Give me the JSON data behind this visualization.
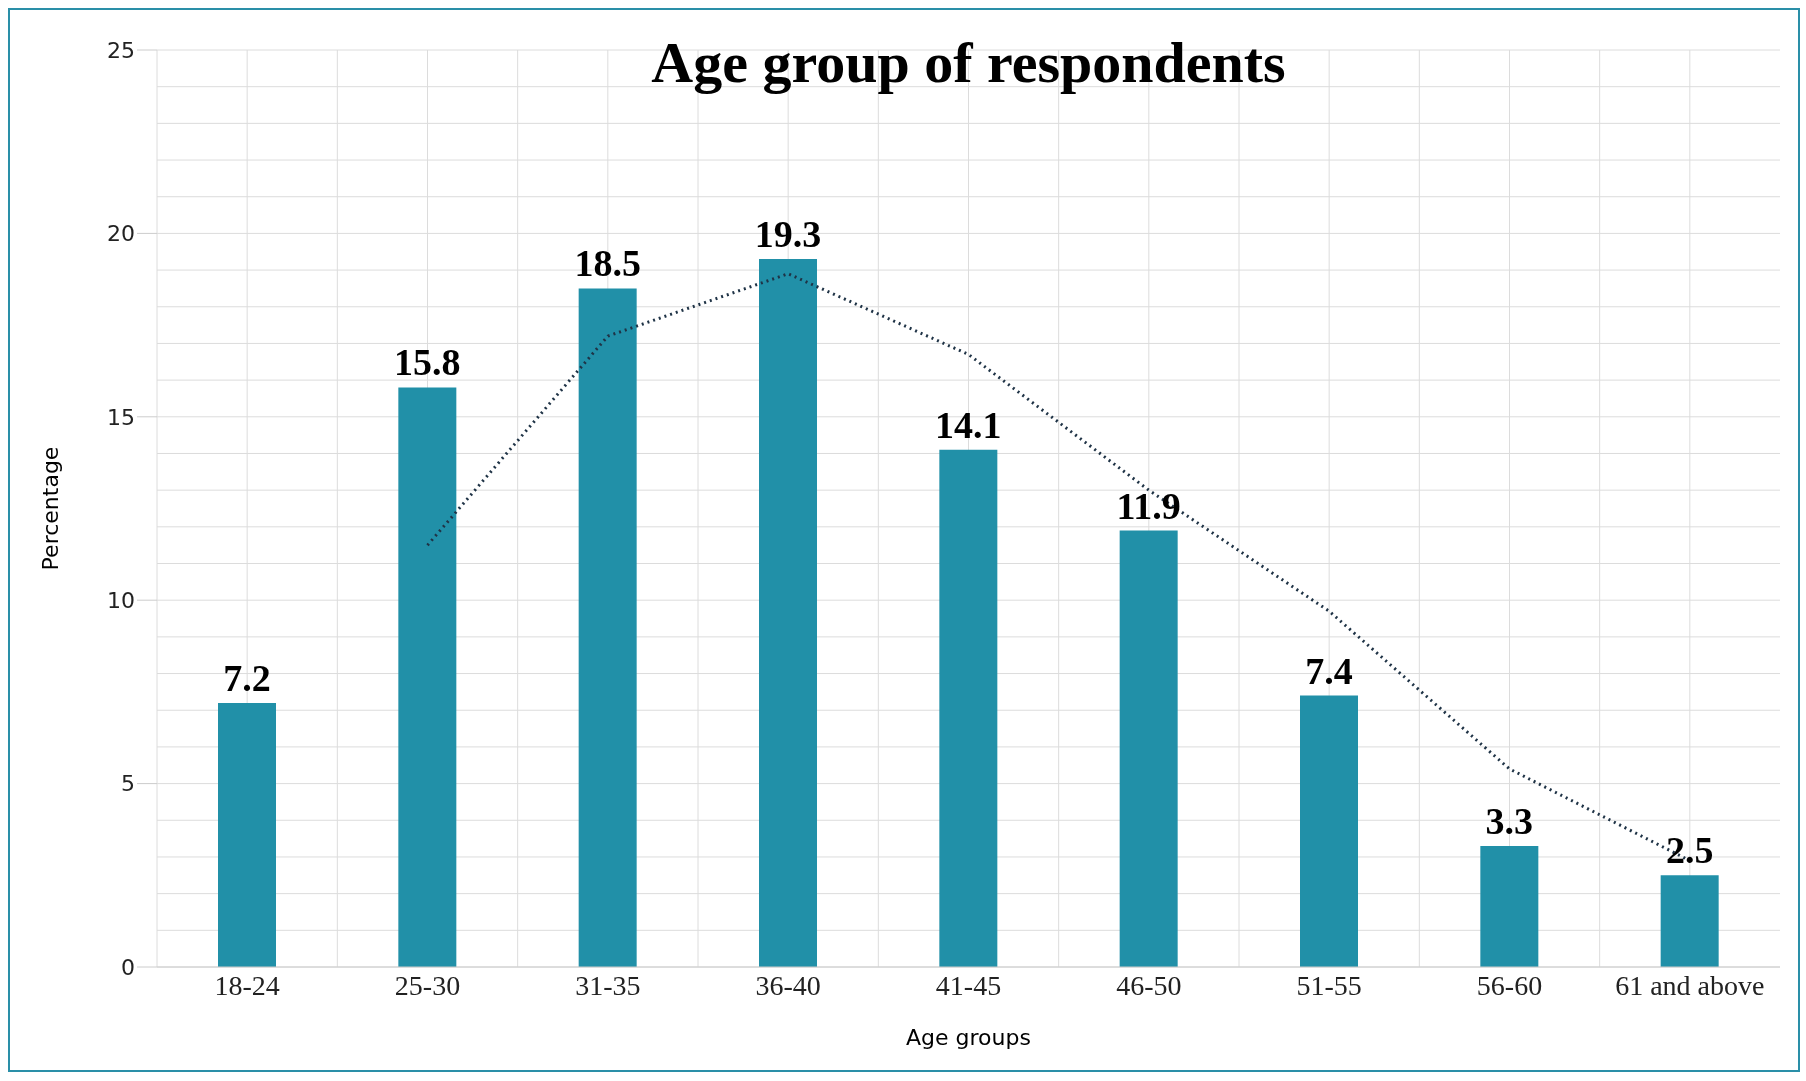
{
  "chart_data": {
    "type": "bar",
    "title": "Age group of  respondents",
    "xlabel": "Age groups",
    "ylabel": "Percentage",
    "categories": [
      "18-24",
      "25-30",
      "31-35",
      "36-40",
      "41-45",
      "46-50",
      "51-55",
      "56-60",
      "61 and above"
    ],
    "series": [
      {
        "color": "#2190a8",
        "values": [
          7.2,
          15.8,
          18.5,
          19.3,
          14.1,
          11.9,
          7.4,
          3.3,
          2.5
        ],
        "value_labels": [
          "7.2",
          "15.8",
          "18.5",
          "19.3",
          "14.1",
          "11.9",
          "7.4",
          "3.3",
          "2.5"
        ]
      },
      {
        "type": "line",
        "color": "#1f3346",
        "line_style": "dotted",
        "marker": "none",
        "x": [
          "25-30",
          "31-35",
          "36-40",
          "41-45",
          "46-50",
          "51-55",
          "56-60",
          "61 and above"
        ],
        "values": [
          11.5,
          17.2,
          18.9,
          16.7,
          13.0,
          9.7,
          5.4,
          2.9
        ]
      }
    ],
    "ylim": [
      0,
      25
    ],
    "yticks": [
      0,
      5,
      10,
      15,
      20,
      25
    ],
    "grid": true
  }
}
